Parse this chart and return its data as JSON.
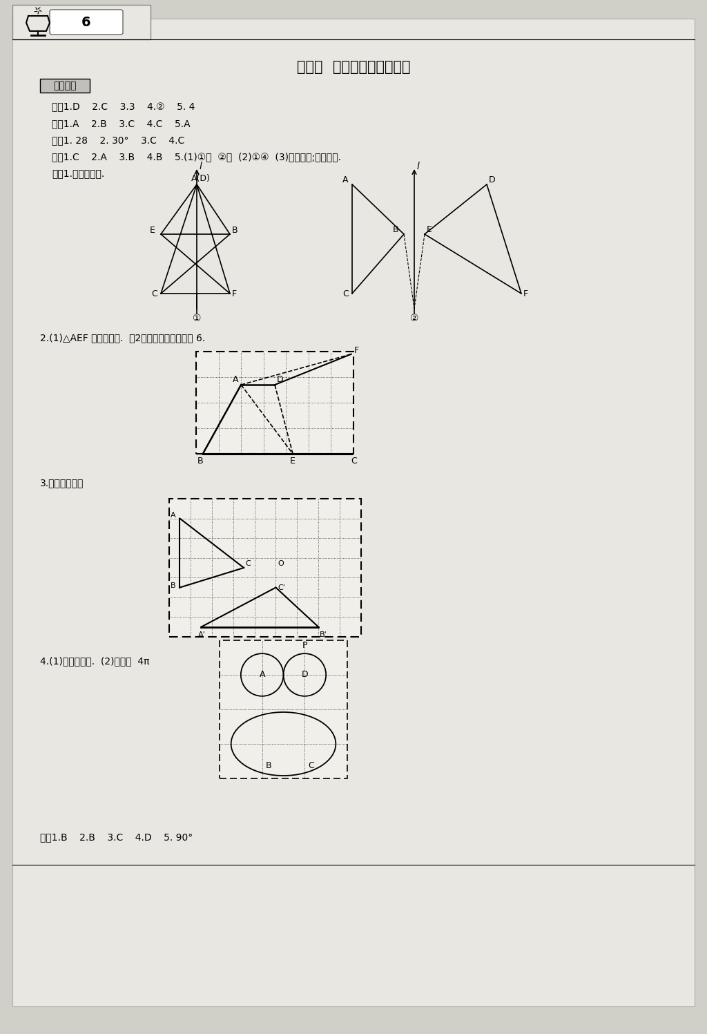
{
  "page_bg": "#e8e6e0",
  "content_bg": "#e8e6e0",
  "title": "第十章  轴对称、平移与旋转",
  "section_header": "要点复习",
  "line1": "一、1.D    2.C    3.3    4.②    5. 4",
  "line2": "二、1.A    2.B    3.C    4.C    5.A",
  "line3": "三、1. 28    2. 30°    3.C    4.C",
  "line4": "四、1.C    2.A    3.B    4.B    5.(1)①对  ②对  (2)①④  (3)正五边形;正十边形.",
  "line5": "五、1.如下图所示.",
  "line_p2": "2.(1)△AEF 如下图所示.  （2）重叠部分的面积为 6.",
  "line_p3": "3.如下图所示；",
  "line_p4": "4.(1)如下图所示.  (2)轴对称  4π",
  "line6": "六、1.B    2.B    3.C    4.D    5. 90°",
  "page_num": "6"
}
